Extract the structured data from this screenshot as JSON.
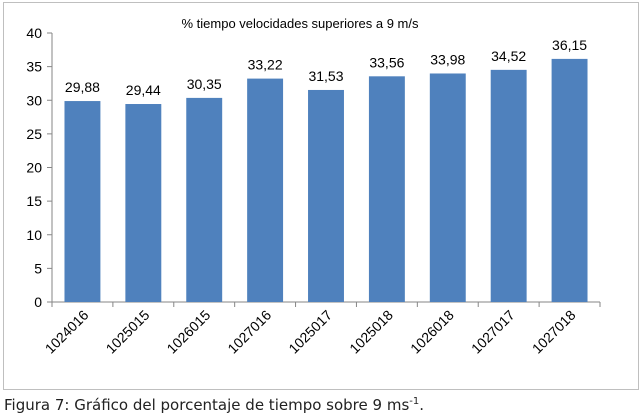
{
  "chart_data": {
    "type": "bar",
    "title": "% tiempo velocidades superiores a 9 m/s",
    "xlabel": "",
    "ylabel": "",
    "categories": [
      "1024016",
      "1025015",
      "1026015",
      "1027016",
      "1025017",
      "1025018",
      "1026018",
      "1027017",
      "1027018"
    ],
    "values": [
      29.88,
      29.44,
      30.35,
      33.22,
      31.53,
      33.56,
      33.98,
      34.52,
      36.15
    ],
    "data_labels": [
      "29,88",
      "29,44",
      "30,35",
      "33,22",
      "31,53",
      "33,56",
      "33,98",
      "34,52",
      "36,15"
    ],
    "ylim": [
      0,
      40
    ],
    "yticks": [
      0,
      5,
      10,
      15,
      20,
      25,
      30,
      35,
      40
    ],
    "grid": false,
    "legend": "none",
    "bar_color": "#4f81bd"
  },
  "caption": {
    "label": "Figura 7",
    "text": ": Gráfico del porcentaje de tiempo sobre 9 ms",
    "superscript": "-1",
    "end": "."
  }
}
